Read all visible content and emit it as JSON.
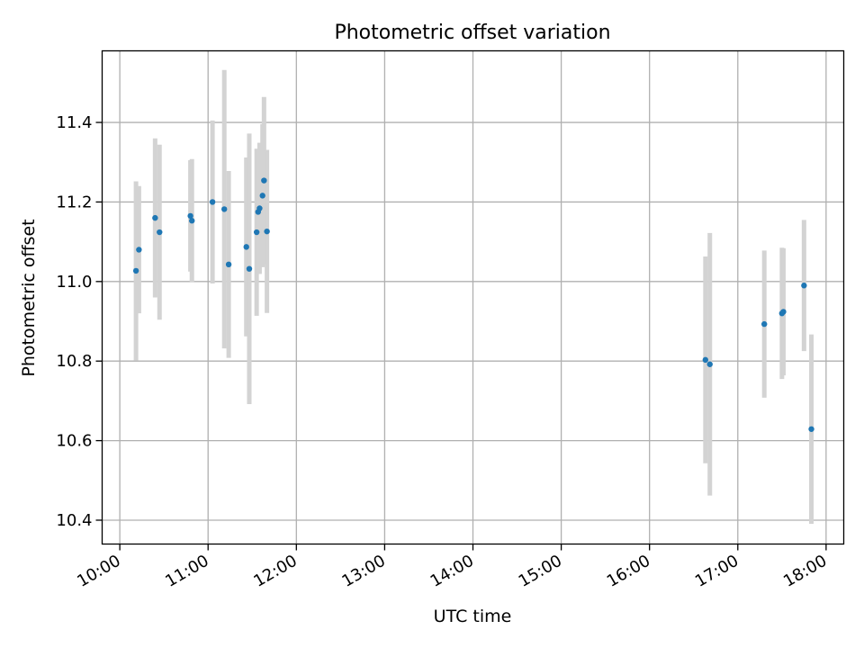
{
  "chart_data": {
    "type": "scatter",
    "title": "Photometric offset variation",
    "xlabel": "UTC time",
    "ylabel": "Photometric offset",
    "x_tick_labels": [
      "10:00",
      "11:00",
      "12:00",
      "13:00",
      "14:00",
      "15:00",
      "16:00",
      "17:00",
      "18:00"
    ],
    "y_tick_labels": [
      "10.4",
      "10.6",
      "10.8",
      "11.0",
      "11.2",
      "11.4"
    ],
    "xlim": [
      "09:48",
      "18:12"
    ],
    "ylim": [
      10.34,
      11.58
    ],
    "grid": true,
    "marker_color": "#1f77b4",
    "errorbar_color": "#d3d3d3",
    "series": [
      {
        "x": [
          "10:11",
          "10:13",
          "10:24",
          "10:27",
          "10:48",
          "10:49",
          "11:03",
          "11:11",
          "11:14",
          "11:26",
          "11:28",
          "11:33",
          "11:34",
          "11:35",
          "11:37",
          "11:38",
          "11:40",
          "16:38",
          "16:41",
          "17:18",
          "17:30",
          "17:31",
          "17:45",
          "17:50"
        ],
        "y": [
          11.027,
          11.08,
          11.16,
          11.124,
          11.165,
          11.153,
          11.2,
          11.182,
          11.043,
          11.087,
          11.032,
          11.124,
          11.175,
          11.184,
          11.216,
          11.254,
          11.126,
          10.803,
          10.792,
          10.893,
          10.92,
          10.924,
          10.99,
          10.629
        ],
        "err": [
          0.225,
          0.16,
          0.2,
          0.22,
          0.14,
          0.155,
          0.205,
          0.35,
          0.235,
          0.225,
          0.34,
          0.21,
          0.155,
          0.165,
          0.18,
          0.21,
          0.205,
          0.26,
          0.33,
          0.185,
          0.165,
          0.16,
          0.165,
          0.238
        ]
      }
    ]
  }
}
